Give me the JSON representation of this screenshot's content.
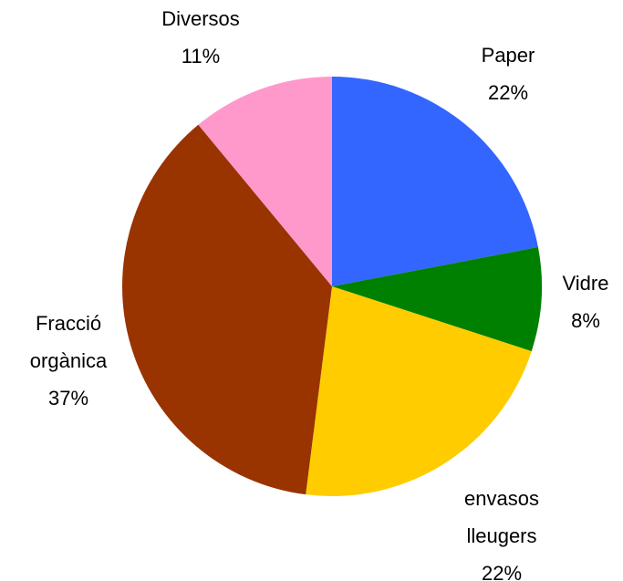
{
  "chart_data": {
    "type": "pie",
    "categories": [
      "Paper",
      "Vidre",
      "envasos lleugers",
      "Fracció orgànica",
      "Diversos"
    ],
    "values": [
      22,
      8,
      22,
      37,
      11
    ],
    "value_labels": [
      "22%",
      "8%",
      "22%",
      "37%",
      "11%"
    ],
    "colors": [
      "#3366ff",
      "#008000",
      "#ffcc00",
      "#993300",
      "#ff99cc"
    ]
  }
}
